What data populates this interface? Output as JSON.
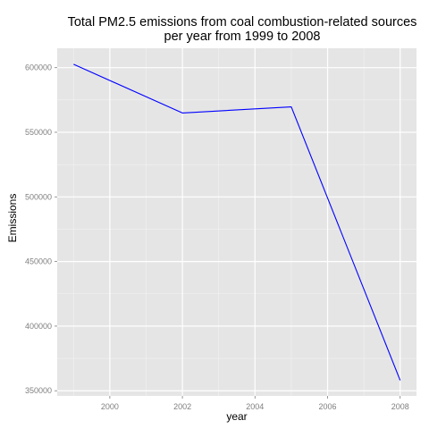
{
  "chart_data": {
    "type": "line",
    "title_lines": [
      "Total PM2.5 emissions from coal combustion-related sources",
      "per year from 1999 to 2008"
    ],
    "xlabel": "year",
    "ylabel": "Emissions",
    "x": [
      1999,
      2002,
      2005,
      2008
    ],
    "series": [
      {
        "values": [
          602624,
          564940,
          569655,
          358084
        ],
        "color": "#0000ff"
      }
    ],
    "xlim": [
      1998.55,
      2008.45
    ],
    "ylim": [
      346000,
      615000
    ],
    "x_ticks": [
      2000,
      2002,
      2004,
      2006,
      2008
    ],
    "x_tick_labels": [
      "2000",
      "2002",
      "2004",
      "2006",
      "2008"
    ],
    "y_ticks": [
      350000,
      400000,
      450000,
      500000,
      550000,
      600000
    ],
    "y_tick_labels": [
      "350000",
      "400000",
      "450000",
      "500000",
      "550000",
      "600000"
    ],
    "grid": true,
    "legend": "none",
    "panel_background": "#e5e5e5"
  }
}
